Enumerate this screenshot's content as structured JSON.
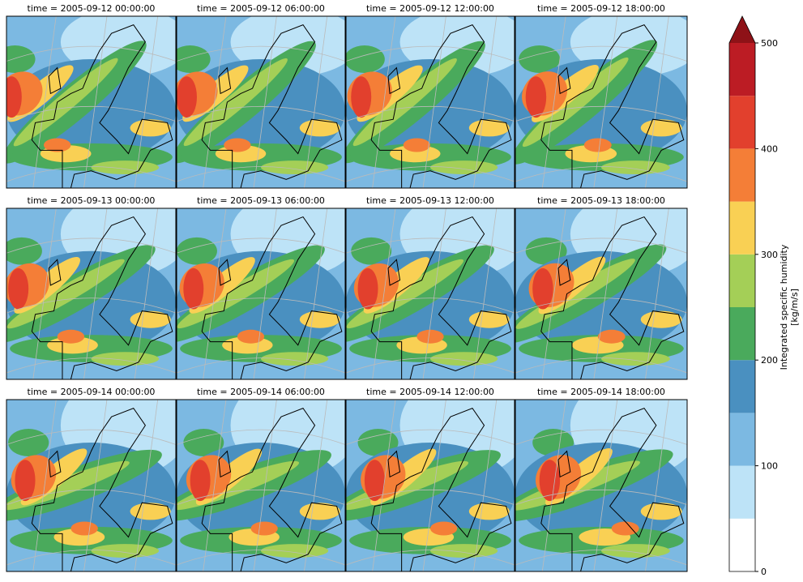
{
  "panels": [
    {
      "title": "time = 2005-09-12 00:00:00"
    },
    {
      "title": "time = 2005-09-12 06:00:00"
    },
    {
      "title": "time = 2005-09-12 12:00:00"
    },
    {
      "title": "time = 2005-09-12 18:00:00"
    },
    {
      "title": "time = 2005-09-13 00:00:00"
    },
    {
      "title": "time = 2005-09-13 06:00:00"
    },
    {
      "title": "time = 2005-09-13 12:00:00"
    },
    {
      "title": "time = 2005-09-13 18:00:00"
    },
    {
      "title": "time = 2005-09-14 00:00:00"
    },
    {
      "title": "time = 2005-09-14 06:00:00"
    },
    {
      "title": "time = 2005-09-14 12:00:00"
    },
    {
      "title": "time = 2005-09-14 18:00:00"
    }
  ],
  "colorbar": {
    "label": [
      "Integrated specific humidity",
      "[kg/m/s]"
    ],
    "levels": [
      0,
      50,
      100,
      150,
      200,
      250,
      300,
      350,
      400,
      450,
      500
    ],
    "colors": [
      "#ffffff",
      "#bde3f7",
      "#7cb9e2",
      "#4a90c0",
      "#4aaa5c",
      "#a4cf57",
      "#f9d054",
      "#f47e37",
      "#e2402d",
      "#bc1c24"
    ],
    "extend_color": "#8e1217",
    "range": [
      0,
      500
    ],
    "ticks": [
      0,
      100,
      200,
      300,
      400,
      500
    ]
  }
}
